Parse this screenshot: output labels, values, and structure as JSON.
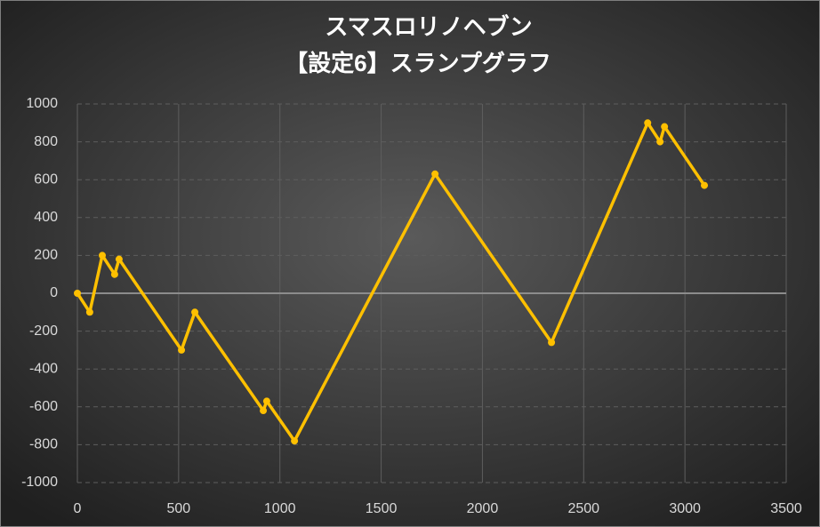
{
  "chart_data": {
    "type": "line",
    "title": "スマスロリノヘブン",
    "subtitle": "【設定6】スランプグラフ",
    "x": [
      0,
      61,
      123,
      184,
      206,
      514,
      580,
      918,
      935,
      1072,
      1766,
      2341,
      2816,
      2877,
      2899,
      3096
    ],
    "values": [
      0,
      -100,
      200,
      100,
      180,
      -300,
      -100,
      -620,
      -570,
      -780,
      630,
      -260,
      900,
      800,
      880,
      570
    ],
    "color": "#ffc000",
    "xlim": [
      0,
      3500
    ],
    "xticks": [
      0,
      500,
      1000,
      1500,
      2000,
      2500,
      3000,
      3500
    ],
    "ylim": [
      -1000,
      1000
    ],
    "yticks": [
      -1000,
      -800,
      -600,
      -400,
      -200,
      0,
      200,
      400,
      600,
      800,
      1000
    ],
    "grid": true
  }
}
